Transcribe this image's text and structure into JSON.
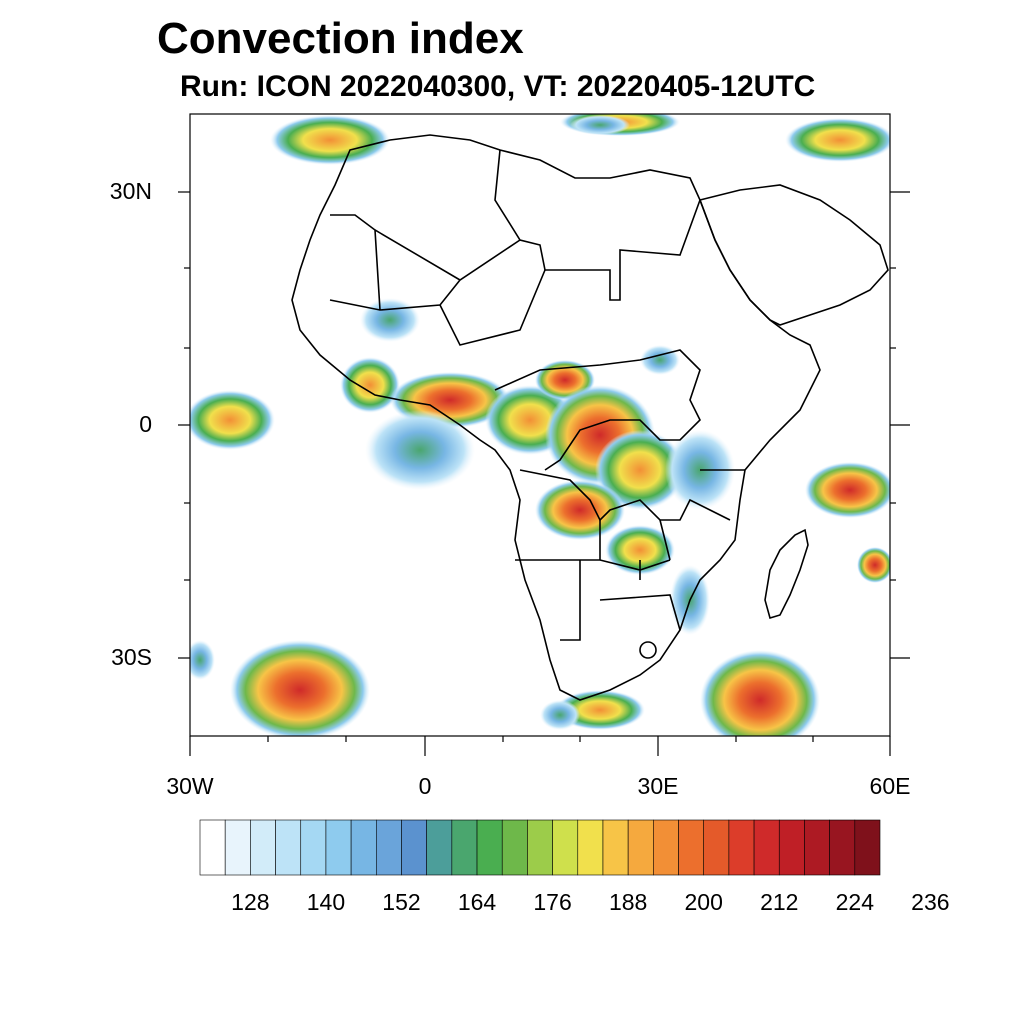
{
  "title": "Convection index",
  "subtitle": "Run: ICON 2022040300,  VT: 20220405-12UTC",
  "map": {
    "region": "Africa",
    "lat_range": [
      "40S",
      "40N"
    ],
    "lon_range": [
      "30W",
      "60E"
    ],
    "lat_labels": [
      "30N",
      "0",
      "30S"
    ],
    "lon_labels": [
      "30W",
      "0",
      "30E",
      "60E"
    ]
  },
  "colorbar": {
    "labels": [
      "128",
      "140",
      "152",
      "164",
      "176",
      "188",
      "200",
      "212",
      "224",
      "236"
    ],
    "colors": [
      "#ffffff",
      "#e8f4fc",
      "#d2ecf9",
      "#bde3f7",
      "#a5d8f3",
      "#8ecbee",
      "#77b6e4",
      "#6aa4da",
      "#5b92cf",
      "#4c9e9a",
      "#4aa66e",
      "#4aae50",
      "#6eb84a",
      "#9ccc4a",
      "#cfe04c",
      "#f1e04c",
      "#f7c447",
      "#f5a93e",
      "#f28f36",
      "#ec6f2d",
      "#e45a2a",
      "#dc3d2a",
      "#cf2a2a",
      "#bf1f26",
      "#ad1a23",
      "#981520",
      "#7f111b"
    ]
  }
}
